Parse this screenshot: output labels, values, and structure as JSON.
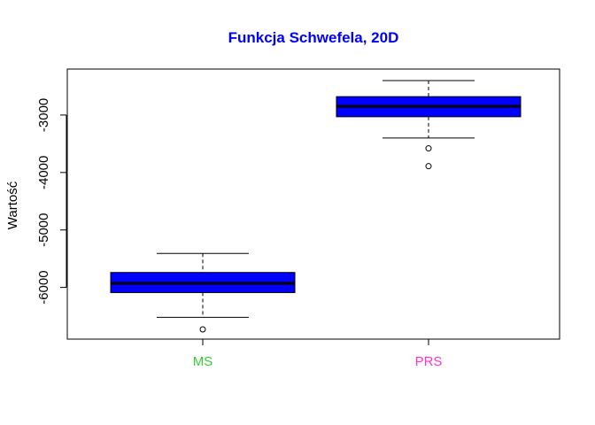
{
  "chart_data": {
    "type": "boxplot",
    "title": "Funkcja Schwefela, 20D",
    "xlabel": "",
    "ylabel": "Wartość",
    "ylim": [
      -6900,
      -2200
    ],
    "yticks": [
      -6000,
      -5000,
      -4000,
      -3000
    ],
    "ytick_labels": [
      "-6000",
      "-5000",
      "-4000",
      "-3000"
    ],
    "grid": false,
    "colors": {
      "title": "#0000ff",
      "box_fill": "#0000ff",
      "box_border": "#000000"
    },
    "series": [
      {
        "category": "MS",
        "label_color": "#33cc33",
        "whisker_low": -6520,
        "q1": -6090,
        "median": -5930,
        "q3": -5740,
        "whisker_high": -5410,
        "outliers": [
          -6730
        ]
      },
      {
        "category": "PRS",
        "label_color": "#ff33cc",
        "whisker_low": -3400,
        "q1": -3030,
        "median": -2850,
        "q3": -2680,
        "whisker_high": -2400,
        "outliers": [
          -3580,
          -3890
        ]
      }
    ]
  }
}
